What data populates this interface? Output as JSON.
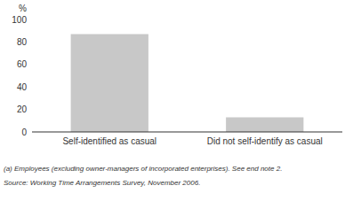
{
  "chart_data": {
    "type": "bar",
    "categories": [
      "Self-identified as casual",
      "Did not self-identify as casual"
    ],
    "values": [
      87,
      13
    ],
    "color": "#c8c8c8",
    "ylabel": "%",
    "ylim": [
      0,
      100
    ],
    "yticks": [
      0,
      20,
      40,
      60,
      80,
      100
    ],
    "grid": false,
    "annotations": [
      "(a) Employees (excluding owner-managers of incorporated enterprises). See end note 2.",
      "Source:  Working Time Arrangements Survey, November 2006."
    ]
  }
}
